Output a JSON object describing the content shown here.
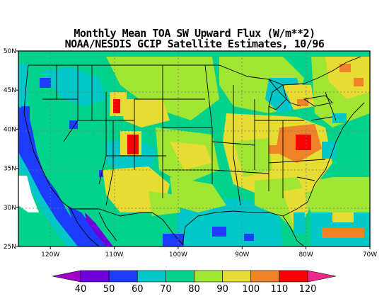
{
  "title_line1": "Monthly Mean TOA SW Upward Flux (W/m**2)",
  "title_line2": "NOAA/NESDIS GCIP Satellite Estimates, 10/96",
  "lat_labels": [
    "50N",
    "45N",
    "40N",
    "35N",
    "30N",
    "25N"
  ],
  "lat_values": [
    50,
    45,
    40,
    35,
    30,
    25
  ],
  "lon_labels": [
    "120W",
    "110W",
    "100W",
    "90W",
    "80W",
    "70W"
  ],
  "lon_values": [
    -120,
    -110,
    -100,
    -90,
    -80,
    -70
  ],
  "extent": {
    "lon_min": -125,
    "lon_max": -70,
    "lat_min": 25,
    "lat_max": 50
  },
  "colorbar": {
    "labels": [
      "40",
      "50",
      "60",
      "70",
      "80",
      "90",
      "100",
      "110",
      "120"
    ],
    "colors": [
      "#a000c8",
      "#6e00dc",
      "#1e3cff",
      "#00c8c8",
      "#00d28c",
      "#a0e632",
      "#e6dc32",
      "#f08228",
      "#fa0000",
      "#f0288c"
    ]
  },
  "colors": {
    "ocean_west": "#1e3cff",
    "gulf": "#00c8c8",
    "background": "#00d28c",
    "boundaries": "#000000"
  }
}
